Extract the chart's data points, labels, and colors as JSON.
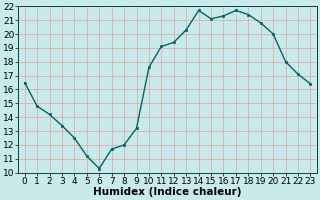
{
  "x": [
    0,
    1,
    2,
    3,
    4,
    5,
    6,
    7,
    8,
    9,
    10,
    11,
    12,
    13,
    14,
    15,
    16,
    17,
    18,
    19,
    20,
    21,
    22,
    23
  ],
  "y": [
    16.5,
    14.8,
    14.2,
    13.4,
    12.5,
    11.2,
    10.3,
    11.7,
    12.0,
    13.2,
    17.6,
    19.1,
    19.4,
    20.3,
    21.7,
    21.1,
    21.3,
    21.7,
    21.4,
    20.8,
    20.0,
    18.0,
    17.1,
    16.4
  ],
  "line_color": "#006666",
  "marker_color": "#006666",
  "bg_color": "#c8eaea",
  "grid_color": "#e8a0a0",
  "xlabel": "Humidex (Indice chaleur)",
  "ylim": [
    10,
    22
  ],
  "xlim": [
    -0.5,
    23.5
  ],
  "yticks": [
    10,
    11,
    12,
    13,
    14,
    15,
    16,
    17,
    18,
    19,
    20,
    21,
    22
  ],
  "xticks": [
    0,
    1,
    2,
    3,
    4,
    5,
    6,
    7,
    8,
    9,
    10,
    11,
    12,
    13,
    14,
    15,
    16,
    17,
    18,
    19,
    20,
    21,
    22,
    23
  ],
  "xlabel_fontsize": 7.5,
  "tick_fontsize": 6.5
}
